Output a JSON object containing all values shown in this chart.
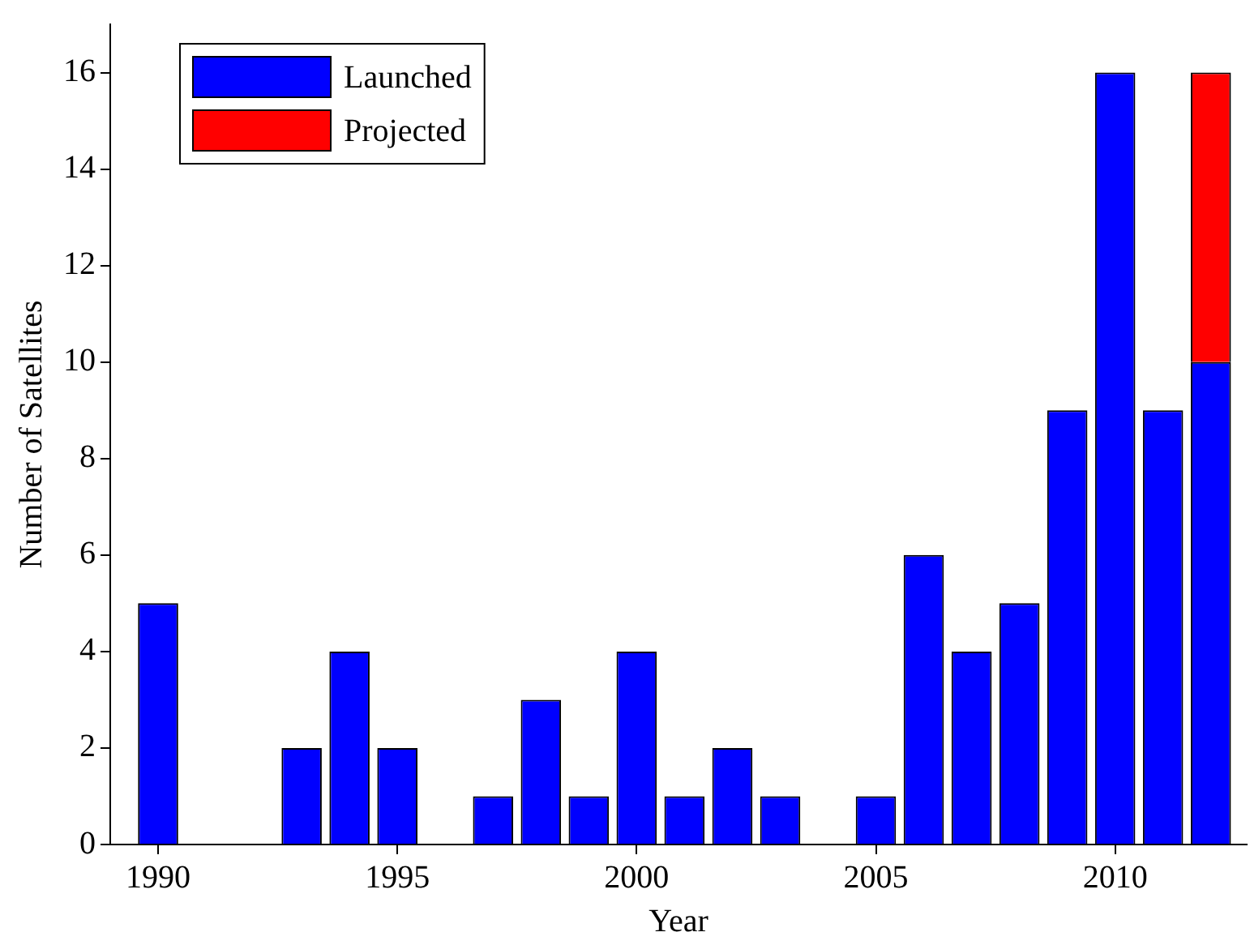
{
  "chart_data": {
    "type": "bar",
    "stacked": true,
    "xlabel": "Year",
    "ylabel": "Number of Satellites",
    "x": [
      1990,
      1991,
      1992,
      1993,
      1994,
      1995,
      1996,
      1997,
      1998,
      1999,
      2000,
      2001,
      2002,
      2003,
      2004,
      2005,
      2006,
      2007,
      2008,
      2009,
      2010,
      2011,
      2012
    ],
    "series": [
      {
        "name": "Launched",
        "color": "#0000ff",
        "values": [
          5,
          0,
          0,
          2,
          4,
          2,
          0,
          1,
          3,
          1,
          4,
          1,
          2,
          1,
          0,
          1,
          6,
          4,
          5,
          9,
          16,
          9,
          10
        ]
      },
      {
        "name": "Projected",
        "color": "#ff0000",
        "values": [
          null,
          null,
          null,
          null,
          null,
          null,
          null,
          null,
          null,
          null,
          null,
          null,
          null,
          null,
          null,
          null,
          null,
          null,
          null,
          null,
          null,
          null,
          6
        ]
      }
    ],
    "xlim": [
      1989,
      2012.75
    ],
    "xticks": [
      1990,
      1995,
      2000,
      2005,
      2010
    ],
    "ylim": [
      0,
      17
    ],
    "yticks": [
      0,
      2,
      4,
      6,
      8,
      10,
      12,
      14,
      16
    ],
    "grid": false,
    "legend": "top left"
  }
}
